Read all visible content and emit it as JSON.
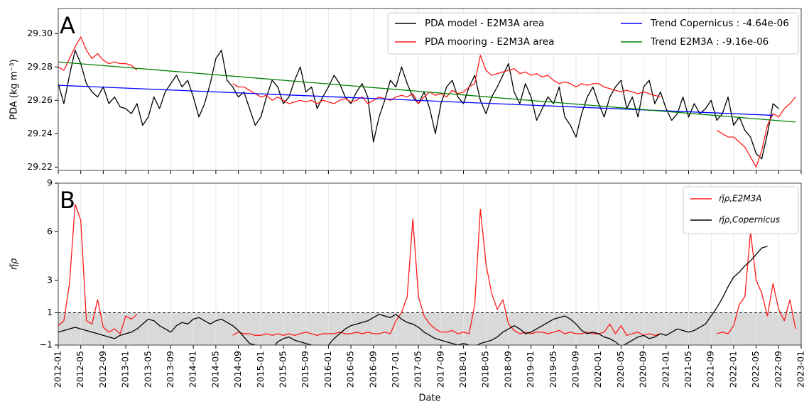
{
  "chart_data": [
    {
      "type": "line",
      "panel": "A",
      "ylabel": "PDA (kg m⁻³)",
      "xlim": [
        "2012-01",
        "2023-01"
      ],
      "ylim": [
        29.218,
        29.315
      ],
      "yticks": [
        29.22,
        29.24,
        29.26,
        29.28,
        {
          "value": 29.3,
          "label": "29.30"
        }
      ],
      "grid": true,
      "legend": "upper right",
      "x": [
        "2012-01",
        "2012-02",
        "2012-03",
        "2012-04",
        "2012-05",
        "2012-06",
        "2012-07",
        "2012-08",
        "2012-09",
        "2012-10",
        "2012-11",
        "2012-12",
        "2013-01",
        "2013-02",
        "2013-03",
        "2013-04",
        "2013-05",
        "2013-06",
        "2013-07",
        "2013-08",
        "2013-09",
        "2013-10",
        "2013-11",
        "2013-12",
        "2014-01",
        "2014-02",
        "2014-03",
        "2014-04",
        "2014-05",
        "2014-06",
        "2014-07",
        "2014-08",
        "2014-09",
        "2014-10",
        "2014-11",
        "2014-12",
        "2015-01",
        "2015-02",
        "2015-03",
        "2015-04",
        "2015-05",
        "2015-06",
        "2015-07",
        "2015-08",
        "2015-09",
        "2015-10",
        "2015-11",
        "2015-12",
        "2016-01",
        "2016-02",
        "2016-03",
        "2016-04",
        "2016-05",
        "2016-06",
        "2016-07",
        "2016-08",
        "2016-09",
        "2016-10",
        "2016-11",
        "2016-12",
        "2017-01",
        "2017-02",
        "2017-03",
        "2017-04",
        "2017-05",
        "2017-06",
        "2017-07",
        "2017-08",
        "2017-09",
        "2017-10",
        "2017-11",
        "2017-12",
        "2018-01",
        "2018-02",
        "2018-03",
        "2018-04",
        "2018-05",
        "2018-06",
        "2018-07",
        "2018-08",
        "2018-09",
        "2018-10",
        "2018-11",
        "2018-12",
        "2019-01",
        "2019-02",
        "2019-03",
        "2019-04",
        "2019-05",
        "2019-06",
        "2019-07",
        "2019-08",
        "2019-09",
        "2019-10",
        "2019-11",
        "2019-12",
        "2020-01",
        "2020-02",
        "2020-03",
        "2020-04",
        "2020-05",
        "2020-06",
        "2020-07",
        "2020-08",
        "2020-09",
        "2020-10",
        "2020-11",
        "2020-12",
        "2021-01",
        "2021-02",
        "2021-03",
        "2021-04",
        "2021-05",
        "2021-06",
        "2021-07",
        "2021-08",
        "2021-09",
        "2021-10",
        "2021-11",
        "2021-12",
        "2022-01",
        "2022-02",
        "2022-03",
        "2022-04",
        "2022-05",
        "2022-06",
        "2022-07",
        "2022-08",
        "2022-09",
        "2022-10",
        "2022-11",
        "2022-12"
      ],
      "series": [
        {
          "name": "PDA model - E2M3A area",
          "color": "#000000",
          "values": [
            29.27,
            29.258,
            29.275,
            29.29,
            29.282,
            29.27,
            29.265,
            29.262,
            29.268,
            29.258,
            29.262,
            29.256,
            29.255,
            29.252,
            29.258,
            29.245,
            29.25,
            29.262,
            29.255,
            29.265,
            29.27,
            29.275,
            29.268,
            29.272,
            29.262,
            29.25,
            29.258,
            29.27,
            29.285,
            29.29,
            29.272,
            29.268,
            29.262,
            29.265,
            29.255,
            29.245,
            29.25,
            29.262,
            29.272,
            29.268,
            29.258,
            29.262,
            29.272,
            29.28,
            29.265,
            29.268,
            29.255,
            29.262,
            29.268,
            29.275,
            29.27,
            29.262,
            29.258,
            29.265,
            29.27,
            29.262,
            29.235,
            29.25,
            29.26,
            29.272,
            29.268,
            29.28,
            29.27,
            29.262,
            29.258,
            29.265,
            29.255,
            29.24,
            29.258,
            29.268,
            29.272,
            29.262,
            29.258,
            29.268,
            29.275,
            29.26,
            29.252,
            29.262,
            29.268,
            29.275,
            29.282,
            29.265,
            29.258,
            29.27,
            29.262,
            29.248,
            29.255,
            29.262,
            29.258,
            29.268,
            29.25,
            29.245,
            29.238,
            29.252,
            29.262,
            29.268,
            29.258,
            29.25,
            29.262,
            29.268,
            29.272,
            29.255,
            29.262,
            29.25,
            29.268,
            29.272,
            29.258,
            29.265,
            29.255,
            29.248,
            29.252,
            29.262,
            29.25,
            29.258,
            29.252,
            29.255,
            29.26,
            29.248,
            29.252,
            29.262,
            29.245,
            29.25,
            29.242,
            29.238,
            29.228,
            29.225,
            29.24,
            29.258,
            29.255,
            null,
            null,
            null
          ]
        },
        {
          "name": "PDA mooring - E2M3A area",
          "color": "#ff1a1a",
          "values": [
            29.28,
            29.278,
            29.285,
            29.292,
            29.298,
            29.29,
            29.285,
            29.288,
            29.284,
            29.282,
            29.283,
            29.282,
            29.282,
            29.281,
            29.278,
            null,
            null,
            null,
            null,
            null,
            null,
            null,
            null,
            null,
            null,
            null,
            null,
            null,
            null,
            null,
            null,
            29.27,
            29.268,
            29.268,
            29.266,
            29.264,
            29.262,
            29.263,
            29.26,
            29.262,
            29.26,
            29.258,
            29.259,
            29.26,
            29.259,
            29.26,
            29.258,
            29.26,
            29.259,
            29.258,
            29.26,
            29.261,
            29.259,
            29.26,
            29.262,
            29.258,
            29.26,
            29.262,
            29.261,
            29.26,
            29.262,
            29.263,
            29.262,
            29.264,
            29.258,
            29.262,
            29.265,
            29.263,
            29.264,
            29.262,
            29.266,
            29.264,
            29.265,
            29.268,
            29.27,
            29.287,
            29.278,
            29.275,
            29.276,
            29.277,
            29.278,
            29.279,
            29.276,
            29.277,
            29.275,
            29.276,
            29.274,
            29.275,
            29.272,
            29.27,
            29.271,
            29.27,
            29.268,
            29.27,
            29.269,
            29.27,
            29.27,
            29.268,
            29.267,
            29.266,
            29.265,
            29.266,
            29.265,
            29.264,
            29.265,
            29.264,
            29.263,
            29.262,
            null,
            null,
            null,
            null,
            null,
            null,
            null,
            null,
            null,
            29.242,
            29.24,
            29.238,
            29.238,
            29.235,
            29.232,
            29.226,
            29.22,
            29.23,
            29.245,
            29.252,
            29.25,
            29.255,
            29.258,
            29.262
          ]
        },
        {
          "name": "Trend Copernicus : -4.64e-06",
          "color": "#0000ff",
          "x": [
            "2012-01",
            "2022-08"
          ],
          "values": [
            29.269,
            29.251
          ]
        },
        {
          "name": "Trend E2M3A : -9.16e-06",
          "color": "#008000",
          "x": [
            "2012-01",
            "2022-12"
          ],
          "values": [
            29.283,
            29.247
          ]
        }
      ]
    },
    {
      "type": "line",
      "panel": "B",
      "ylabel": "η̃ρ",
      "xlabel": "Date",
      "xlim": [
        "2012-01",
        "2023-01"
      ],
      "ylim": [
        -1,
        9
      ],
      "yticks": [
        {
          "value": -1,
          "label": "−1"
        },
        1,
        3,
        6,
        9
      ],
      "xticks": [
        "2012-01",
        "2012-05",
        "2012-09",
        "2013-01",
        "2013-05",
        "2013-09",
        "2014-01",
        "2014-05",
        "2014-09",
        "2015-01",
        "2015-05",
        "2015-09",
        "2016-01",
        "2016-05",
        "2016-09",
        "2017-01",
        "2017-05",
        "2017-09",
        "2018-01",
        "2018-05",
        "2018-09",
        "2019-01",
        "2019-05",
        "2019-09",
        "2020-01",
        "2020-05",
        "2020-09",
        "2021-01",
        "2021-05",
        "2021-09",
        "2022-01",
        "2022-05",
        "2022-09",
        "2023-01"
      ],
      "grid": true,
      "legend": "upper right",
      "threshold": 1,
      "band_color": "#d9d9d9",
      "x": [
        "2012-01",
        "2012-02",
        "2012-03",
        "2012-04",
        "2012-05",
        "2012-06",
        "2012-07",
        "2012-08",
        "2012-09",
        "2012-10",
        "2012-11",
        "2012-12",
        "2013-01",
        "2013-02",
        "2013-03",
        "2013-04",
        "2013-05",
        "2013-06",
        "2013-07",
        "2013-08",
        "2013-09",
        "2013-10",
        "2013-11",
        "2013-12",
        "2014-01",
        "2014-02",
        "2014-03",
        "2014-04",
        "2014-05",
        "2014-06",
        "2014-07",
        "2014-08",
        "2014-09",
        "2014-10",
        "2014-11",
        "2014-12",
        "2015-01",
        "2015-02",
        "2015-03",
        "2015-04",
        "2015-05",
        "2015-06",
        "2015-07",
        "2015-08",
        "2015-09",
        "2015-10",
        "2015-11",
        "2015-12",
        "2016-01",
        "2016-02",
        "2016-03",
        "2016-04",
        "2016-05",
        "2016-06",
        "2016-07",
        "2016-08",
        "2016-09",
        "2016-10",
        "2016-11",
        "2016-12",
        "2017-01",
        "2017-02",
        "2017-03",
        "2017-04",
        "2017-05",
        "2017-06",
        "2017-07",
        "2017-08",
        "2017-09",
        "2017-10",
        "2017-11",
        "2017-12",
        "2018-01",
        "2018-02",
        "2018-03",
        "2018-04",
        "2018-05",
        "2018-06",
        "2018-07",
        "2018-08",
        "2018-09",
        "2018-10",
        "2018-11",
        "2018-12",
        "2019-01",
        "2019-02",
        "2019-03",
        "2019-04",
        "2019-05",
        "2019-06",
        "2019-07",
        "2019-08",
        "2019-09",
        "2019-10",
        "2019-11",
        "2019-12",
        "2020-01",
        "2020-02",
        "2020-03",
        "2020-04",
        "2020-05",
        "2020-06",
        "2020-07",
        "2020-08",
        "2020-09",
        "2020-10",
        "2020-11",
        "2020-12",
        "2021-01",
        "2021-02",
        "2021-03",
        "2021-04",
        "2021-05",
        "2021-06",
        "2021-07",
        "2021-08",
        "2021-09",
        "2021-10",
        "2021-11",
        "2021-12",
        "2022-01",
        "2022-02",
        "2022-03",
        "2022-04",
        "2022-05",
        "2022-06",
        "2022-07",
        "2022-08",
        "2022-09",
        "2022-10",
        "2022-11",
        "2022-12"
      ],
      "series": [
        {
          "name": "η̃ρ,E2M3A",
          "color": "#ff1a1a",
          "values": [
            0.2,
            0.5,
            2.8,
            7.7,
            6.7,
            0.5,
            0.3,
            1.8,
            0.1,
            -0.2,
            0.0,
            -0.3,
            0.8,
            0.6,
            0.9,
            null,
            null,
            null,
            null,
            null,
            null,
            null,
            null,
            null,
            null,
            null,
            null,
            null,
            null,
            null,
            null,
            -0.4,
            -0.2,
            -0.3,
            -0.3,
            -0.4,
            -0.4,
            -0.3,
            -0.4,
            -0.3,
            -0.4,
            -0.3,
            -0.4,
            -0.3,
            -0.2,
            -0.3,
            -0.4,
            -0.3,
            -0.3,
            -0.3,
            -0.2,
            -0.3,
            -0.3,
            -0.2,
            -0.3,
            -0.2,
            -0.3,
            -0.3,
            -0.2,
            -0.3,
            0.5,
            1.0,
            2.0,
            6.8,
            2.0,
            0.8,
            0.3,
            0.0,
            -0.2,
            -0.2,
            -0.1,
            -0.3,
            -0.2,
            -0.3,
            1.5,
            7.4,
            4.0,
            2.2,
            1.2,
            1.8,
            0.3,
            -0.1,
            -0.3,
            -0.2,
            -0.3,
            -0.2,
            -0.2,
            -0.3,
            -0.2,
            -0.1,
            -0.3,
            -0.2,
            -0.3,
            -0.3,
            -0.2,
            -0.3,
            -0.3,
            -0.2,
            0.3,
            -0.3,
            0.2,
            -0.4,
            -0.3,
            -0.2,
            -0.4,
            -0.3,
            -0.4,
            -0.3,
            null,
            null,
            null,
            null,
            null,
            null,
            null,
            null,
            null,
            -0.3,
            -0.2,
            -0.3,
            0.2,
            1.5,
            2.0,
            6.0,
            3.0,
            2.2,
            0.8,
            2.8,
            1.2,
            0.5,
            1.8,
            0.0
          ]
        },
        {
          "name": "η̃ρ,Copernicus",
          "color": "#000000",
          "values": [
            -0.2,
            -0.1,
            0.0,
            0.1,
            0.0,
            -0.1,
            -0.2,
            -0.3,
            -0.4,
            -0.5,
            -0.6,
            -0.4,
            -0.3,
            -0.2,
            0.0,
            0.3,
            0.6,
            0.5,
            0.2,
            0.0,
            -0.2,
            0.2,
            0.4,
            0.3,
            0.6,
            0.7,
            0.5,
            0.3,
            0.5,
            0.6,
            0.4,
            0.2,
            -0.1,
            -0.5,
            -0.9,
            -1.0,
            -1.3,
            -1.5,
            -1.2,
            -0.8,
            -0.6,
            -0.5,
            -0.7,
            -0.8,
            -0.9,
            -1.0,
            -1.2,
            -1.3,
            -1.0,
            -0.6,
            -0.3,
            0.0,
            0.2,
            0.3,
            0.4,
            0.5,
            0.7,
            0.9,
            0.8,
            0.7,
            0.9,
            0.6,
            0.4,
            0.3,
            0.1,
            -0.2,
            -0.4,
            -0.6,
            -0.7,
            -0.8,
            -0.9,
            -1.0,
            -0.9,
            -1.0,
            -1.1,
            -0.9,
            -0.8,
            -0.7,
            -0.5,
            -0.2,
            0.0,
            0.2,
            0.0,
            -0.3,
            -0.2,
            0.0,
            0.2,
            0.4,
            0.6,
            0.7,
            0.8,
            0.6,
            0.3,
            -0.1,
            -0.3,
            -0.2,
            -0.3,
            -0.5,
            -0.6,
            -0.8,
            -1.1,
            -0.9,
            -0.7,
            -0.5,
            -0.4,
            -0.6,
            -0.5,
            -0.3,
            -0.4,
            -0.2,
            0.0,
            -0.1,
            -0.2,
            -0.1,
            0.1,
            0.3,
            0.8,
            1.3,
            1.9,
            2.6,
            3.2,
            3.5,
            3.9,
            4.2,
            4.6,
            5.0,
            5.1,
            null,
            null,
            null,
            null,
            null
          ]
        }
      ]
    }
  ]
}
